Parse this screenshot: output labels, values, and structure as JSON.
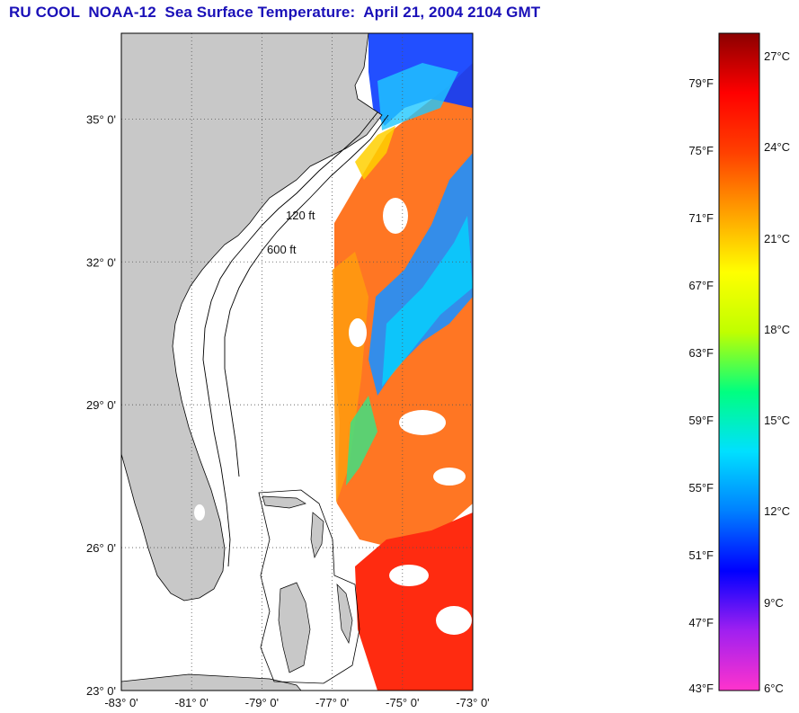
{
  "title": "RU COOL  NOAA-12  Sea Surface Temperature:  April 21, 2004 2104 GMT",
  "map": {
    "lon_range": [
      -83,
      -73
    ],
    "lat_range": [
      23,
      36.8
    ],
    "lat_ticks": [
      {
        "value": 35,
        "label": "35° 0'"
      },
      {
        "value": 32,
        "label": "32° 0'"
      },
      {
        "value": 29,
        "label": "29° 0'"
      },
      {
        "value": 26,
        "label": "26° 0'"
      },
      {
        "value": 23,
        "label": "23° 0'"
      }
    ],
    "lon_ticks": [
      {
        "value": -83,
        "label": "-83° 0'"
      },
      {
        "value": -81,
        "label": "-81° 0'"
      },
      {
        "value": -79,
        "label": "-79° 0'"
      },
      {
        "value": -77,
        "label": "-77° 0'"
      },
      {
        "value": -75,
        "label": "-75° 0'"
      },
      {
        "value": -73,
        "label": "-73° 0'"
      }
    ],
    "isobath_labels": [
      "120 ft",
      "600 ft"
    ],
    "colors": {
      "land": "#c8c8c8",
      "ocean_no_data": "#ffffff",
      "grid": "#555555",
      "frame": "#000000"
    }
  },
  "colorbar": {
    "range_f": [
      43,
      82
    ],
    "fahrenheit_labels": [
      {
        "value": 79,
        "label": "79°F"
      },
      {
        "value": 75,
        "label": "75°F"
      },
      {
        "value": 71,
        "label": "71°F"
      },
      {
        "value": 67,
        "label": "67°F"
      },
      {
        "value": 63,
        "label": "63°F"
      },
      {
        "value": 59,
        "label": "59°F"
      },
      {
        "value": 55,
        "label": "55°F"
      },
      {
        "value": 51,
        "label": "51°F"
      },
      {
        "value": 47,
        "label": "47°F"
      },
      {
        "value": 43,
        "label": "43°F"
      }
    ],
    "celsius_labels": [
      {
        "value": 27,
        "label": "27°C"
      },
      {
        "value": 24,
        "label": "24°C"
      },
      {
        "value": 21,
        "label": "21°C"
      },
      {
        "value": 18,
        "label": "18°C"
      },
      {
        "value": 15,
        "label": "15°C"
      },
      {
        "value": 12,
        "label": "12°C"
      },
      {
        "value": 9,
        "label": "9°C"
      },
      {
        "value": 6,
        "label": "6°C"
      }
    ],
    "stops": [
      "#ff33cc",
      "#a020f0",
      "#0000ff",
      "#0080ff",
      "#00e0ff",
      "#00ff80",
      "#c0ff00",
      "#ffff00",
      "#ffa000",
      "#ff4000",
      "#ff0000",
      "#8b0000"
    ]
  }
}
